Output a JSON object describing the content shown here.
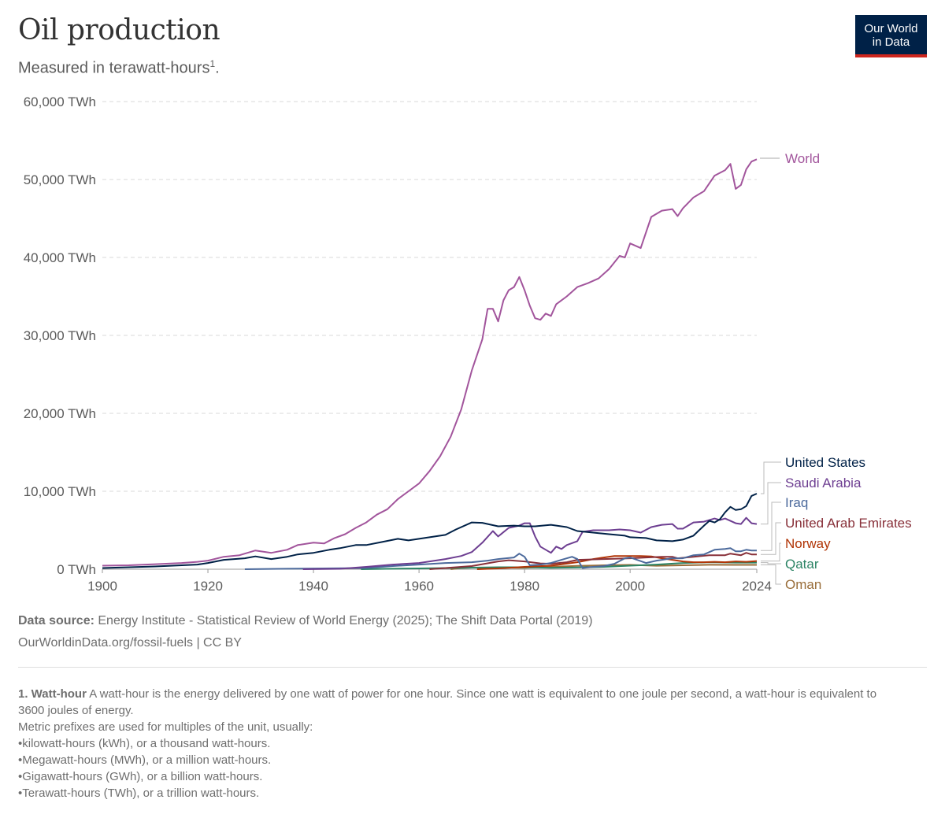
{
  "header": {
    "title": "Oil production",
    "subtitle": "Measured in terawatt-hours",
    "subtitle_sup": "1",
    "subtitle_end": ".",
    "logo_line1": "Our World",
    "logo_line2": "in Data"
  },
  "chart_data": {
    "type": "line",
    "title": "Oil production",
    "subtitle": "Measured in terawatt-hours.",
    "ylim": [
      0,
      60000
    ],
    "xlim": [
      1900,
      2024
    ],
    "y_ticks": [
      {
        "value": 0,
        "label": "0 TWh"
      },
      {
        "value": 10000,
        "label": "10,000 TWh"
      },
      {
        "value": 20000,
        "label": "20,000 TWh"
      },
      {
        "value": 30000,
        "label": "30,000 TWh"
      },
      {
        "value": 40000,
        "label": "40,000 TWh"
      },
      {
        "value": 50000,
        "label": "50,000 TWh"
      },
      {
        "value": 60000,
        "label": "60,000 TWh"
      }
    ],
    "x_ticks": [
      {
        "value": 1900,
        "label": "1900"
      },
      {
        "value": 1920,
        "label": "1920"
      },
      {
        "value": 1940,
        "label": "1940"
      },
      {
        "value": 1960,
        "label": "1960"
      },
      {
        "value": 1980,
        "label": "1980"
      },
      {
        "value": 2000,
        "label": "2000"
      },
      {
        "value": 2024,
        "label": "2024"
      }
    ],
    "grid": "horizontal dashed",
    "legend": "right, labels at line ends",
    "series": [
      {
        "name": "World",
        "color": "#a2559c",
        "points": [
          [
            1900,
            450
          ],
          [
            1905,
            500
          ],
          [
            1910,
            650
          ],
          [
            1915,
            800
          ],
          [
            1918,
            950
          ],
          [
            1920,
            1100
          ],
          [
            1923,
            1600
          ],
          [
            1926,
            1800
          ],
          [
            1929,
            2400
          ],
          [
            1932,
            2100
          ],
          [
            1935,
            2500
          ],
          [
            1937,
            3100
          ],
          [
            1940,
            3400
          ],
          [
            1942,
            3300
          ],
          [
            1944,
            4000
          ],
          [
            1946,
            4500
          ],
          [
            1948,
            5300
          ],
          [
            1950,
            6000
          ],
          [
            1952,
            7000
          ],
          [
            1954,
            7700
          ],
          [
            1956,
            9000
          ],
          [
            1958,
            10000
          ],
          [
            1960,
            11000
          ],
          [
            1962,
            12600
          ],
          [
            1964,
            14500
          ],
          [
            1966,
            17000
          ],
          [
            1968,
            20500
          ],
          [
            1970,
            25500
          ],
          [
            1972,
            29500
          ],
          [
            1973,
            33400
          ],
          [
            1974,
            33400
          ],
          [
            1975,
            31800
          ],
          [
            1976,
            34500
          ],
          [
            1977,
            35800
          ],
          [
            1978,
            36200
          ],
          [
            1979,
            37500
          ],
          [
            1980,
            35800
          ],
          [
            1981,
            33800
          ],
          [
            1982,
            32200
          ],
          [
            1983,
            32000
          ],
          [
            1984,
            32800
          ],
          [
            1985,
            32500
          ],
          [
            1986,
            34000
          ],
          [
            1988,
            35000
          ],
          [
            1990,
            36200
          ],
          [
            1992,
            36700
          ],
          [
            1994,
            37300
          ],
          [
            1996,
            38500
          ],
          [
            1998,
            40200
          ],
          [
            1999,
            40000
          ],
          [
            2000,
            41800
          ],
          [
            2002,
            41200
          ],
          [
            2004,
            45200
          ],
          [
            2006,
            46000
          ],
          [
            2008,
            46200
          ],
          [
            2009,
            45300
          ],
          [
            2010,
            46300
          ],
          [
            2012,
            47700
          ],
          [
            2014,
            48500
          ],
          [
            2016,
            50500
          ],
          [
            2018,
            51200
          ],
          [
            2019,
            52000
          ],
          [
            2020,
            48800
          ],
          [
            2021,
            49300
          ],
          [
            2022,
            51300
          ],
          [
            2023,
            52300
          ],
          [
            2024,
            52600
          ]
        ]
      },
      {
        "name": "United States",
        "color": "#002147",
        "points": [
          [
            1900,
            150
          ],
          [
            1910,
            350
          ],
          [
            1918,
            600
          ],
          [
            1920,
            800
          ],
          [
            1923,
            1200
          ],
          [
            1927,
            1400
          ],
          [
            1929,
            1650
          ],
          [
            1932,
            1300
          ],
          [
            1935,
            1600
          ],
          [
            1937,
            1900
          ],
          [
            1940,
            2100
          ],
          [
            1943,
            2500
          ],
          [
            1945,
            2700
          ],
          [
            1948,
            3100
          ],
          [
            1950,
            3100
          ],
          [
            1953,
            3500
          ],
          [
            1956,
            3900
          ],
          [
            1958,
            3700
          ],
          [
            1960,
            3900
          ],
          [
            1963,
            4200
          ],
          [
            1965,
            4400
          ],
          [
            1967,
            5100
          ],
          [
            1970,
            6000
          ],
          [
            1972,
            5950
          ],
          [
            1975,
            5500
          ],
          [
            1978,
            5600
          ],
          [
            1980,
            5500
          ],
          [
            1982,
            5500
          ],
          [
            1985,
            5700
          ],
          [
            1988,
            5400
          ],
          [
            1990,
            4900
          ],
          [
            1993,
            4700
          ],
          [
            1996,
            4500
          ],
          [
            1999,
            4300
          ],
          [
            2000,
            4100
          ],
          [
            2003,
            4000
          ],
          [
            2005,
            3700
          ],
          [
            2008,
            3600
          ],
          [
            2010,
            3800
          ],
          [
            2012,
            4300
          ],
          [
            2014,
            5600
          ],
          [
            2015,
            6200
          ],
          [
            2016,
            6000
          ],
          [
            2017,
            6400
          ],
          [
            2018,
            7300
          ],
          [
            2019,
            8000
          ],
          [
            2020,
            7600
          ],
          [
            2021,
            7700
          ],
          [
            2022,
            8100
          ],
          [
            2023,
            9400
          ],
          [
            2024,
            9700
          ]
        ]
      },
      {
        "name": "Saudi Arabia",
        "color": "#6d3e91",
        "points": [
          [
            1938,
            0
          ],
          [
            1945,
            50
          ],
          [
            1950,
            300
          ],
          [
            1955,
            600
          ],
          [
            1960,
            800
          ],
          [
            1965,
            1300
          ],
          [
            1968,
            1700
          ],
          [
            1970,
            2200
          ],
          [
            1972,
            3400
          ],
          [
            1974,
            4900
          ],
          [
            1975,
            4200
          ],
          [
            1977,
            5300
          ],
          [
            1979,
            5600
          ],
          [
            1980,
            5900
          ],
          [
            1981,
            5900
          ],
          [
            1982,
            4200
          ],
          [
            1983,
            2900
          ],
          [
            1985,
            2100
          ],
          [
            1986,
            2900
          ],
          [
            1987,
            2600
          ],
          [
            1988,
            3100
          ],
          [
            1990,
            3600
          ],
          [
            1991,
            4800
          ],
          [
            1993,
            5000
          ],
          [
            1996,
            5000
          ],
          [
            1998,
            5100
          ],
          [
            2000,
            5000
          ],
          [
            2002,
            4700
          ],
          [
            2004,
            5400
          ],
          [
            2006,
            5700
          ],
          [
            2008,
            5800
          ],
          [
            2009,
            5200
          ],
          [
            2010,
            5200
          ],
          [
            2012,
            6000
          ],
          [
            2014,
            6100
          ],
          [
            2016,
            6500
          ],
          [
            2017,
            6300
          ],
          [
            2018,
            6500
          ],
          [
            2019,
            6200
          ],
          [
            2020,
            5900
          ],
          [
            2021,
            5800
          ],
          [
            2022,
            6600
          ],
          [
            2023,
            5900
          ],
          [
            2024,
            5800
          ]
        ]
      },
      {
        "name": "Iraq",
        "color": "#4c6a9c",
        "points": [
          [
            1927,
            0
          ],
          [
            1935,
            60
          ],
          [
            1950,
            150
          ],
          [
            1955,
            400
          ],
          [
            1960,
            600
          ],
          [
            1965,
            800
          ],
          [
            1970,
            900
          ],
          [
            1973,
            1100
          ],
          [
            1975,
            1300
          ],
          [
            1978,
            1500
          ],
          [
            1979,
            2000
          ],
          [
            1980,
            1600
          ],
          [
            1981,
            500
          ],
          [
            1983,
            600
          ],
          [
            1985,
            800
          ],
          [
            1987,
            1200
          ],
          [
            1989,
            1600
          ],
          [
            1990,
            1300
          ],
          [
            1991,
            150
          ],
          [
            1993,
            300
          ],
          [
            1995,
            400
          ],
          [
            1997,
            700
          ],
          [
            1999,
            1400
          ],
          [
            2000,
            1500
          ],
          [
            2003,
            800
          ],
          [
            2005,
            1100
          ],
          [
            2008,
            1400
          ],
          [
            2010,
            1400
          ],
          [
            2012,
            1800
          ],
          [
            2014,
            1900
          ],
          [
            2016,
            2500
          ],
          [
            2018,
            2600
          ],
          [
            2019,
            2700
          ],
          [
            2020,
            2300
          ],
          [
            2021,
            2300
          ],
          [
            2022,
            2500
          ],
          [
            2023,
            2400
          ],
          [
            2024,
            2400
          ]
        ]
      },
      {
        "name": "United Arab Emirates",
        "color": "#883039",
        "points": [
          [
            1962,
            0
          ],
          [
            1965,
            150
          ],
          [
            1970,
            400
          ],
          [
            1975,
            1000
          ],
          [
            1977,
            1150
          ],
          [
            1980,
            1000
          ],
          [
            1983,
            750
          ],
          [
            1985,
            700
          ],
          [
            1988,
            900
          ],
          [
            1990,
            1200
          ],
          [
            1995,
            1300
          ],
          [
            2000,
            1400
          ],
          [
            2003,
            1500
          ],
          [
            2006,
            1600
          ],
          [
            2008,
            1600
          ],
          [
            2009,
            1400
          ],
          [
            2012,
            1600
          ],
          [
            2015,
            1800
          ],
          [
            2018,
            1800
          ],
          [
            2019,
            2000
          ],
          [
            2020,
            1900
          ],
          [
            2021,
            1800
          ],
          [
            2022,
            2100
          ],
          [
            2023,
            1900
          ],
          [
            2024,
            1900
          ]
        ]
      },
      {
        "name": "Norway",
        "color": "#b13507",
        "points": [
          [
            1971,
            0
          ],
          [
            1975,
            100
          ],
          [
            1980,
            300
          ],
          [
            1985,
            450
          ],
          [
            1990,
            900
          ],
          [
            1993,
            1300
          ],
          [
            1995,
            1500
          ],
          [
            1997,
            1700
          ],
          [
            2000,
            1700
          ],
          [
            2002,
            1700
          ],
          [
            2004,
            1650
          ],
          [
            2006,
            1400
          ],
          [
            2008,
            1200
          ],
          [
            2010,
            1000
          ],
          [
            2012,
            900
          ],
          [
            2014,
            900
          ],
          [
            2016,
            950
          ],
          [
            2018,
            900
          ],
          [
            2020,
            1000
          ],
          [
            2022,
            950
          ],
          [
            2024,
            1050
          ]
        ]
      },
      {
        "name": "Qatar",
        "color": "#2c8465",
        "points": [
          [
            1949,
            0
          ],
          [
            1955,
            60
          ],
          [
            1960,
            100
          ],
          [
            1970,
            200
          ],
          [
            1975,
            250
          ],
          [
            1980,
            250
          ],
          [
            1985,
            180
          ],
          [
            1990,
            220
          ],
          [
            1995,
            300
          ],
          [
            2000,
            450
          ],
          [
            2005,
            600
          ],
          [
            2010,
            800
          ],
          [
            2015,
            900
          ],
          [
            2020,
            850
          ],
          [
            2024,
            850
          ]
        ]
      },
      {
        "name": "Oman",
        "color": "#996d39",
        "points": [
          [
            1966,
            0
          ],
          [
            1968,
            150
          ],
          [
            1970,
            200
          ],
          [
            1975,
            200
          ],
          [
            1980,
            180
          ],
          [
            1985,
            300
          ],
          [
            1990,
            420
          ],
          [
            1995,
            500
          ],
          [
            2000,
            560
          ],
          [
            2005,
            440
          ],
          [
            2010,
            500
          ],
          [
            2015,
            570
          ],
          [
            2020,
            560
          ],
          [
            2024,
            560
          ]
        ]
      }
    ]
  },
  "source": {
    "label": "Data source:",
    "text": "Energy Institute - Statistical Review of World Energy (2025); The Shift Data Portal (2019)",
    "link": "OurWorldinData.org/fossil-fuels | CC BY"
  },
  "footnote": {
    "title": "1. Watt-hour",
    "text": "A watt-hour is the energy delivered by one watt of power for one hour. Since one watt is equivalent to one joule per second, a watt-hour is equivalent to 3600 joules of energy.",
    "line2": "Metric prefixes are used for multiples of the unit, usually:",
    "items": [
      "kilowatt-hours (kWh), or a thousand watt-hours.",
      "Megawatt-hours (MWh), or a million watt-hours.",
      "Gigawatt-hours (GWh), or a billion watt-hours.",
      "Terawatt-hours (TWh), or a trillion watt-hours."
    ]
  }
}
